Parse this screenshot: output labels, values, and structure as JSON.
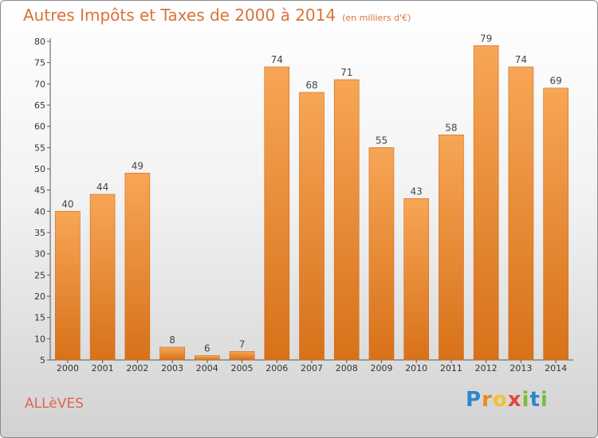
{
  "chart_data": {
    "type": "bar",
    "title": "Autres Impôts et Taxes de 2000 à 2014",
    "subtitle": "(en milliers d'€)",
    "categories": [
      "2000",
      "2001",
      "2002",
      "2003",
      "2004",
      "2005",
      "2006",
      "2007",
      "2008",
      "2009",
      "2010",
      "2011",
      "2012",
      "2013",
      "2014"
    ],
    "values": [
      40,
      44,
      49,
      8,
      6,
      7,
      74,
      68,
      71,
      55,
      43,
      58,
      79,
      74,
      69
    ],
    "ylim": [
      5,
      80
    ],
    "yticks": [
      5,
      10,
      15,
      20,
      25,
      30,
      35,
      40,
      45,
      50,
      55,
      60,
      65,
      70,
      75,
      80
    ],
    "grid": false,
    "bar_color": "#e8832a"
  },
  "commune": "ALLèVES",
  "logo": {
    "p": "P",
    "r": "r",
    "o": "o",
    "x": "x",
    "i1": "i",
    "t": "t",
    "i2": "i"
  }
}
